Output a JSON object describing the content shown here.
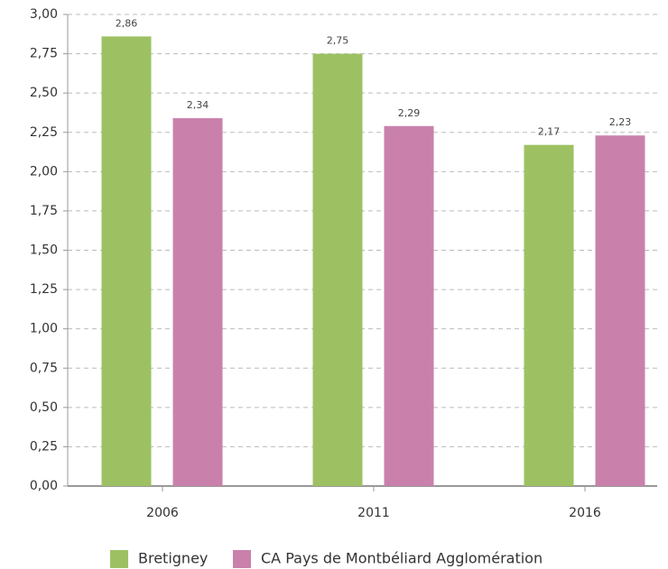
{
  "chart_data": {
    "type": "bar",
    "categories": [
      "2006",
      "2011",
      "2016"
    ],
    "series": [
      {
        "name": "Bretigney",
        "color": "#9dc162",
        "values": [
          2.86,
          2.75,
          2.17
        ],
        "value_labels": [
          "2,86",
          "2,75",
          "2,17"
        ]
      },
      {
        "name": "CA Pays de Montbéliard Agglomération",
        "color": "#c981ac",
        "values": [
          2.34,
          2.29,
          2.23
        ],
        "value_labels": [
          "2,34",
          "2,29",
          "2,23"
        ]
      }
    ],
    "ylim": [
      0,
      3
    ],
    "yticks": [
      {
        "value": 0,
        "label": "0,00"
      },
      {
        "value": 0.25,
        "label": "0,25"
      },
      {
        "value": 0.5,
        "label": "0,50"
      },
      {
        "value": 0.75,
        "label": "0,75"
      },
      {
        "value": 1,
        "label": "1,00"
      },
      {
        "value": 1.25,
        "label": "1,25"
      },
      {
        "value": 1.5,
        "label": "1,50"
      },
      {
        "value": 1.75,
        "label": "1,75"
      },
      {
        "value": 2,
        "label": "2,00"
      },
      {
        "value": 2.25,
        "label": "2,25"
      },
      {
        "value": 2.5,
        "label": "2,50"
      },
      {
        "value": 2.75,
        "label": "2,75"
      },
      {
        "value": 3,
        "label": "3,00"
      }
    ],
    "grid": true
  }
}
